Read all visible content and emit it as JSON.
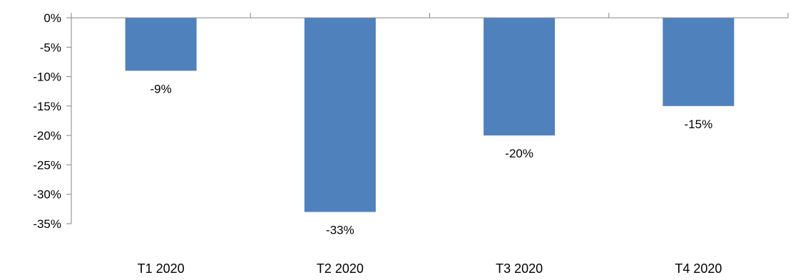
{
  "chart_data": {
    "type": "bar",
    "title": "",
    "xlabel": "",
    "ylabel": "",
    "categories": [
      "T1 2020",
      "T2 2020",
      "T3 2020",
      "T4 2020"
    ],
    "values": [
      -9,
      -33,
      -20,
      -15
    ],
    "data_labels": [
      "-9%",
      "-33%",
      "-20%",
      "-15%"
    ],
    "ylim": [
      -35,
      0
    ],
    "yticks": [
      0,
      -5,
      -10,
      -15,
      -20,
      -25,
      -30,
      -35
    ],
    "ytick_labels": [
      "0%",
      "-5%",
      "-10%",
      "-15%",
      "-20%",
      "-25%",
      "-30%",
      "-35%"
    ],
    "grid": false,
    "legend": "none",
    "bar_color": "#4F81BD",
    "axis_color": "#868686"
  }
}
